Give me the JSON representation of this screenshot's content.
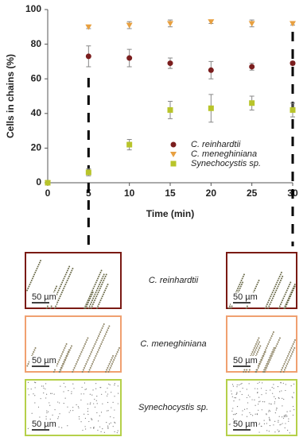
{
  "chart_data": {
    "type": "scatter",
    "ylabel": "Cells in chains (%)",
    "xlabel": "Time (min)",
    "x": [
      0,
      5,
      10,
      15,
      20,
      25,
      30
    ],
    "xlim": [
      0,
      30
    ],
    "xticks": [
      0,
      5,
      10,
      15,
      20,
      25,
      30
    ],
    "ylim": [
      0,
      100
    ],
    "yticks": [
      0,
      20,
      40,
      60,
      80,
      100
    ],
    "highlight_x": [
      5,
      30
    ],
    "series": [
      {
        "name": "C. reinhardtii",
        "color": "#7b1e1e",
        "marker": "circle",
        "values": [
          0,
          73,
          72,
          69,
          65,
          67,
          69
        ],
        "errors": [
          0,
          6,
          5,
          3,
          5,
          2,
          1
        ]
      },
      {
        "name": "C. meneghiniana",
        "color": "#e8a040",
        "marker": "triangle-down",
        "values": [
          0,
          90,
          91,
          92,
          93,
          92,
          92
        ],
        "errors": [
          0,
          1,
          2,
          2,
          1,
          2,
          1
        ]
      },
      {
        "name": "Synechocystis sp.",
        "color": "#b8c42a",
        "marker": "square",
        "values": [
          0,
          6,
          22,
          42,
          43,
          46,
          42
        ],
        "errors": [
          0,
          2,
          3,
          5,
          8,
          4,
          4
        ]
      }
    ]
  },
  "panels": [
    {
      "label": "C. reinhardtii",
      "scale_bar": "50 µm",
      "border": "#7a1a14"
    },
    {
      "label": "C. meneghiniana",
      "scale_bar": "50 µm",
      "border": "#f0a070"
    },
    {
      "label": "Synechocystis sp.",
      "scale_bar": "50 µm",
      "border": "#b5d04a"
    }
  ]
}
